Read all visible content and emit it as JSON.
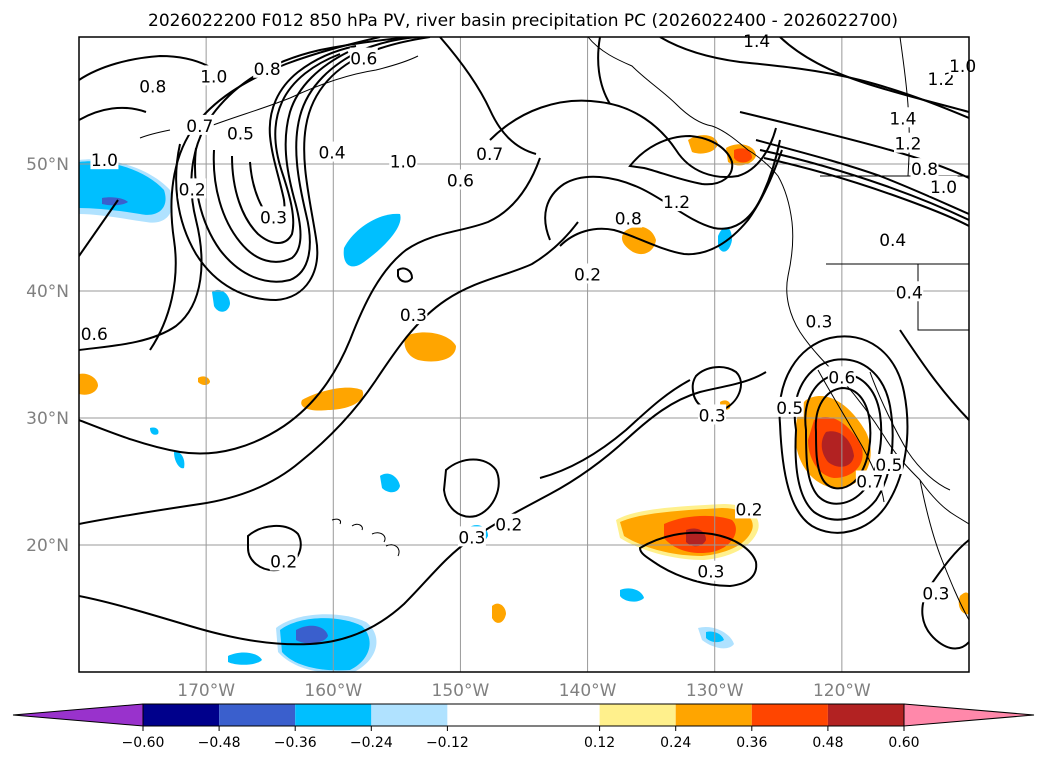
{
  "chart_data": {
    "type": "contour-map",
    "title": "2026022200 F012 850 hPa PV, river basin precipitation PC (2026022400 - 2026022700)",
    "lon_range": [
      -180,
      -110
    ],
    "lat_range": [
      10,
      60
    ],
    "x_ticks": [
      {
        "lon": -170,
        "label": "170°W"
      },
      {
        "lon": -160,
        "label": "160°W"
      },
      {
        "lon": -150,
        "label": "150°W"
      },
      {
        "lon": -140,
        "label": "140°W"
      },
      {
        "lon": -130,
        "label": "130°W"
      },
      {
        "lon": -120,
        "label": "120°W"
      }
    ],
    "y_ticks": [
      {
        "lat": 20,
        "label": "20°N"
      },
      {
        "lat": 30,
        "label": "30°N"
      },
      {
        "lat": 40,
        "label": "40°N"
      },
      {
        "lat": 50,
        "label": "50°N"
      }
    ],
    "grid": true,
    "colorbar": {
      "extend": "both",
      "levels": [
        -0.72,
        -0.6,
        -0.48,
        -0.36,
        -0.24,
        -0.12,
        0.12,
        0.24,
        0.36,
        0.48,
        0.6,
        0.72
      ],
      "tick_labels": [
        "−0.60",
        "−0.48",
        "−0.36",
        "−0.24",
        "−0.12",
        "0.12",
        "0.24",
        "0.36",
        "0.48",
        "0.60"
      ],
      "colors": [
        "#9932cc",
        "#00008b",
        "#3a5fcd",
        "#00bfff",
        "#b0e2ff",
        "#ffffff",
        "#fff08c",
        "#ffa500",
        "#ff4500",
        "#b22222",
        "#ff88aa"
      ]
    },
    "contour_labels": [
      {
        "text": "0.8",
        "lon": -174.2,
        "lat": 56.1
      },
      {
        "text": "1.0",
        "lon": -169.4,
        "lat": 56.9
      },
      {
        "text": "0.8",
        "lon": -165.2,
        "lat": 57.5
      },
      {
        "text": "0.6",
        "lon": -157.6,
        "lat": 58.3
      },
      {
        "text": "0.7",
        "lon": -170.5,
        "lat": 53.0
      },
      {
        "text": "0.5",
        "lon": -167.3,
        "lat": 52.4
      },
      {
        "text": "0.4",
        "lon": -160.1,
        "lat": 50.9
      },
      {
        "text": "0.2",
        "lon": -171.1,
        "lat": 48.0
      },
      {
        "text": "0.3",
        "lon": -164.7,
        "lat": 45.8
      },
      {
        "text": "0.6",
        "lon": -178.8,
        "lat": 36.6
      },
      {
        "text": "1.0",
        "lon": -178.0,
        "lat": 50.3
      },
      {
        "text": "1.0",
        "lon": -154.5,
        "lat": 50.2
      },
      {
        "text": "0.6",
        "lon": -150.0,
        "lat": 48.7
      },
      {
        "text": "0.7",
        "lon": -147.7,
        "lat": 50.8
      },
      {
        "text": "0.2",
        "lon": -140.0,
        "lat": 41.3
      },
      {
        "text": "0.8",
        "lon": -136.8,
        "lat": 45.7
      },
      {
        "text": "1.2",
        "lon": -133.0,
        "lat": 47.0
      },
      {
        "text": "1.4",
        "lon": -126.7,
        "lat": 59.7
      },
      {
        "text": "1.4",
        "lon": -115.2,
        "lat": 53.6
      },
      {
        "text": "1.2",
        "lon": -114.8,
        "lat": 51.6
      },
      {
        "text": "1.2",
        "lon": -112.2,
        "lat": 56.7
      },
      {
        "text": "1.0",
        "lon": -110.5,
        "lat": 57.7
      },
      {
        "text": "1.0",
        "lon": -112.0,
        "lat": 48.2
      },
      {
        "text": "0.8",
        "lon": -113.5,
        "lat": 49.6
      },
      {
        "text": "0.4",
        "lon": -116.0,
        "lat": 44.0
      },
      {
        "text": "0.4",
        "lon": -114.7,
        "lat": 39.9
      },
      {
        "text": "0.3",
        "lon": -121.8,
        "lat": 37.6
      },
      {
        "text": "0.3",
        "lon": -153.7,
        "lat": 38.1
      },
      {
        "text": "0.3",
        "lon": -130.2,
        "lat": 30.2
      },
      {
        "text": "0.6",
        "lon": -120.0,
        "lat": 33.2
      },
      {
        "text": "0.5",
        "lon": -124.1,
        "lat": 30.8
      },
      {
        "text": "0.5",
        "lon": -116.3,
        "lat": 26.3
      },
      {
        "text": "0.7",
        "lon": -117.8,
        "lat": 25.0
      },
      {
        "text": "0.2",
        "lon": -127.3,
        "lat": 22.8
      },
      {
        "text": "0.2",
        "lon": -146.2,
        "lat": 21.6
      },
      {
        "text": "0.3",
        "lon": -149.1,
        "lat": 20.6
      },
      {
        "text": "0.3",
        "lon": -130.3,
        "lat": 17.9
      },
      {
        "text": "0.2",
        "lon": -163.9,
        "lat": 18.7
      },
      {
        "text": "0.3",
        "lon": -112.6,
        "lat": 16.2
      }
    ]
  }
}
